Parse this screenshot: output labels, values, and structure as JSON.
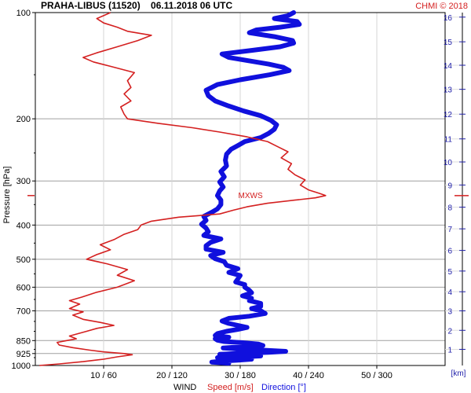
{
  "header": {
    "title": "PRAHA-LIBUS (11520)    06.11.2018 06 UTC",
    "credit": "CHMI © 2018",
    "credit_color": "#d42020"
  },
  "footer": {
    "wind": "WIND",
    "speed": "Speed [m/s]",
    "direction": "Direction [°]"
  },
  "colors": {
    "speed": "#d42020",
    "direction": "#1010dd",
    "km_axis": "#2020aa",
    "grid": "#a0a0a0"
  },
  "chart_data": {
    "type": "line",
    "title": "PRAHA-LIBUS (11520)    06.11.2018 06 UTC",
    "ylabel": "Pressure [hPa]",
    "xlabel": "WIND",
    "y_scale": "log",
    "ylim": [
      1000,
      100
    ],
    "y_ticks": [
      100,
      200,
      300,
      400,
      500,
      600,
      700,
      850,
      925,
      1000
    ],
    "x_ticks": [
      {
        "label": "10 / 60",
        "speed": 10,
        "direction": 60
      },
      {
        "label": "20 / 120",
        "speed": 20,
        "direction": 120
      },
      {
        "label": "30 / 180",
        "speed": 30,
        "direction": 180
      },
      {
        "label": "40 / 240",
        "speed": 40,
        "direction": 240
      },
      {
        "label": "50 / 300",
        "speed": 50,
        "direction": 300
      }
    ],
    "xlim_speed": [
      0,
      60
    ],
    "xlim_direction": [
      0,
      360
    ],
    "km_axis": {
      "label": "[km]",
      "ticks": [
        "1",
        "2",
        "3",
        "4",
        "5",
        "6",
        "7",
        "8",
        "9",
        "10",
        "11",
        "12",
        "13",
        "14",
        "15",
        "16"
      ],
      "pressure_at_km": [
        900,
        795,
        700,
        618,
        540,
        472,
        410,
        356,
        308,
        265,
        228,
        194,
        165,
        141,
        121,
        103
      ]
    },
    "annotations": [
      {
        "text": "MXWS",
        "pressure": 330,
        "speed": 28.8
      }
    ],
    "grid": true,
    "series": [
      {
        "name": "Speed [m/s]",
        "points": [
          [
            1000,
            0.6
          ],
          [
            990,
            3.5
          ],
          [
            975,
            7.0
          ],
          [
            960,
            10.0
          ],
          [
            945,
            12.0
          ],
          [
            932,
            14.2
          ],
          [
            925,
            13.0
          ],
          [
            915,
            10.0
          ],
          [
            905,
            8.0
          ],
          [
            890,
            5.5
          ],
          [
            875,
            3.5
          ],
          [
            860,
            3.2
          ],
          [
            850,
            4.6
          ],
          [
            840,
            6.0
          ],
          [
            825,
            5.0
          ],
          [
            800,
            7.5
          ],
          [
            785,
            9.0
          ],
          [
            770,
            11.5
          ],
          [
            755,
            9.5
          ],
          [
            740,
            7.0
          ],
          [
            720,
            5.5
          ],
          [
            705,
            7.0
          ],
          [
            690,
            5.0
          ],
          [
            670,
            6.5
          ],
          [
            655,
            5.0
          ],
          [
            640,
            6.8
          ],
          [
            620,
            9.0
          ],
          [
            600,
            12.0
          ],
          [
            575,
            14.5
          ],
          [
            555,
            12.0
          ],
          [
            535,
            13.5
          ],
          [
            515,
            10.5
          ],
          [
            500,
            7.5
          ],
          [
            485,
            9.0
          ],
          [
            470,
            11.0
          ],
          [
            455,
            9.5
          ],
          [
            440,
            11.5
          ],
          [
            425,
            13.0
          ],
          [
            412,
            15.0
          ],
          [
            400,
            15.5
          ],
          [
            390,
            17.0
          ],
          [
            380,
            21.0
          ],
          [
            372,
            27.0
          ],
          [
            363,
            29.0
          ],
          [
            355,
            31.0
          ],
          [
            347,
            34.0
          ],
          [
            340,
            38.0
          ],
          [
            335,
            41.0
          ],
          [
            330,
            42.5
          ],
          [
            325,
            41.5
          ],
          [
            318,
            40.0
          ],
          [
            308,
            38.8
          ],
          [
            298,
            39.5
          ],
          [
            288,
            38.0
          ],
          [
            278,
            37.0
          ],
          [
            268,
            37.5
          ],
          [
            258,
            36.0
          ],
          [
            248,
            37.0
          ],
          [
            240,
            35.5
          ],
          [
            232,
            34.0
          ],
          [
            225,
            31.0
          ],
          [
            218,
            27.0
          ],
          [
            212,
            23.0
          ],
          [
            206,
            18.0
          ],
          [
            200,
            13.5
          ],
          [
            194,
            13.0
          ],
          [
            185,
            12.5
          ],
          [
            178,
            14.0
          ],
          [
            170,
            13.0
          ],
          [
            163,
            14.0
          ],
          [
            156,
            13.5
          ],
          [
            148,
            14.5
          ],
          [
            142,
            11.0
          ],
          [
            138,
            8.5
          ],
          [
            134,
            7.0
          ],
          [
            130,
            9.0
          ],
          [
            125,
            12.0
          ],
          [
            120,
            15.0
          ],
          [
            116,
            17.0
          ],
          [
            113,
            13.5
          ],
          [
            110,
            12.0
          ],
          [
            107,
            10.0
          ],
          [
            104,
            9.0
          ],
          [
            102,
            10.0
          ],
          [
            100,
            11.0
          ]
        ]
      },
      {
        "name": "Direction [°]",
        "points": [
          [
            985,
            170
          ],
          [
            978,
            155
          ],
          [
            972,
            163
          ],
          [
            966,
            178
          ],
          [
            960,
            190
          ],
          [
            955,
            175
          ],
          [
            950,
            160
          ],
          [
            945,
            182
          ],
          [
            940,
            198
          ],
          [
            935,
            180
          ],
          [
            930,
            162
          ],
          [
            924,
            178
          ],
          [
            918,
            205
          ],
          [
            912,
            220
          ],
          [
            905,
            200
          ],
          [
            898,
            180
          ],
          [
            892,
            165
          ],
          [
            885,
            180
          ],
          [
            878,
            200
          ],
          [
            870,
            196
          ],
          [
            862,
            182
          ],
          [
            855,
            166
          ],
          [
            848,
            160
          ],
          [
            840,
            158
          ],
          [
            832,
            170
          ],
          [
            822,
            158
          ],
          [
            812,
            160
          ],
          [
            800,
            168
          ],
          [
            790,
            178
          ],
          [
            780,
            186
          ],
          [
            770,
            178
          ],
          [
            760,
            170
          ],
          [
            748,
            164
          ],
          [
            735,
            170
          ],
          [
            725,
            188
          ],
          [
            712,
            202
          ],
          [
            700,
            198
          ],
          [
            690,
            190
          ],
          [
            680,
            198
          ],
          [
            667,
            198
          ],
          [
            655,
            188
          ],
          [
            645,
            190
          ],
          [
            635,
            182
          ],
          [
            622,
            190
          ],
          [
            612,
            188
          ],
          [
            600,
            184
          ],
          [
            590,
            184
          ],
          [
            580,
            176
          ],
          [
            568,
            178
          ],
          [
            556,
            180
          ],
          [
            545,
            170
          ],
          [
            532,
            178
          ],
          [
            520,
            168
          ],
          [
            508,
            166
          ],
          [
            498,
            158
          ],
          [
            488,
            154
          ],
          [
            478,
            165
          ],
          [
            468,
            150
          ],
          [
            458,
            150
          ],
          [
            448,
            154
          ],
          [
            438,
            163
          ],
          [
            428,
            148
          ],
          [
            418,
            152
          ],
          [
            408,
            150
          ],
          [
            398,
            146
          ],
          [
            388,
            150
          ],
          [
            378,
            148
          ],
          [
            368,
            155
          ],
          [
            360,
            160
          ],
          [
            350,
            163
          ],
          [
            340,
            163
          ],
          [
            330,
            160
          ],
          [
            320,
            162
          ],
          [
            312,
            165
          ],
          [
            302,
            162
          ],
          [
            292,
            166
          ],
          [
            282,
            163
          ],
          [
            272,
            168
          ],
          [
            262,
            167
          ],
          [
            252,
            168
          ],
          [
            244,
            172
          ],
          [
            238,
            178
          ],
          [
            232,
            184
          ],
          [
            226,
            198
          ],
          [
            220,
            205
          ],
          [
            214,
            210
          ],
          [
            208,
            212
          ],
          [
            202,
            207
          ],
          [
            196,
            198
          ],
          [
            190,
            183
          ],
          [
            184,
            170
          ],
          [
            178,
            158
          ],
          [
            172,
            152
          ],
          [
            166,
            150
          ],
          [
            160,
            160
          ],
          [
            155,
            180
          ],
          [
            150,
            206
          ],
          [
            146,
            223
          ],
          [
            143,
            218
          ],
          [
            140,
            205
          ],
          [
            137,
            188
          ],
          [
            134,
            170
          ],
          [
            131,
            164
          ],
          [
            128,
            190
          ],
          [
            125,
            215
          ],
          [
            122,
            227
          ],
          [
            120,
            226
          ],
          [
            117,
            210
          ],
          [
            114,
            188
          ],
          [
            112,
            194
          ],
          [
            110,
            215
          ],
          [
            108,
            232
          ],
          [
            106,
            230
          ],
          [
            104,
            210
          ],
          [
            102,
            222
          ],
          [
            100,
            227
          ]
        ]
      }
    ]
  }
}
